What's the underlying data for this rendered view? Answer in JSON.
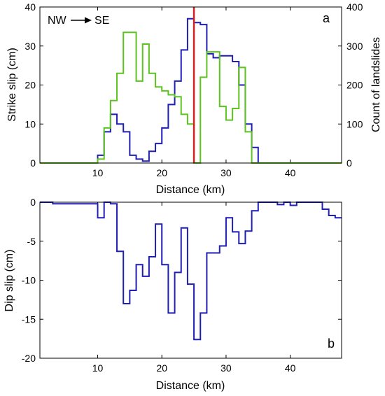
{
  "chart_data": [
    {
      "panel": "a",
      "type": "line",
      "step": true,
      "panel_label": "a",
      "annotation": "NW",
      "annotation_2": "SE",
      "xlabel": "Distance (km)",
      "ylabel": "Strike slip (cm)",
      "ylabel_right": "Count of landslides",
      "xlim": [
        1,
        48
      ],
      "ylim": [
        0,
        40
      ],
      "ylim_right": [
        0,
        400
      ],
      "xticks": [
        10,
        20,
        30,
        40
      ],
      "yticks": [
        0,
        10,
        20,
        30,
        40
      ],
      "yticks_right": [
        0,
        100,
        200,
        300,
        400
      ],
      "vline_x": 25,
      "vline_color": "#d42020",
      "series": [
        {
          "axis": "left",
          "color": "#1f1fb4",
          "x": [
            1,
            9,
            10,
            11,
            12,
            13,
            14,
            15,
            16,
            17,
            18,
            19,
            20,
            21,
            22,
            23,
            24,
            25,
            26,
            27,
            28,
            29,
            30,
            31,
            32,
            33,
            34,
            35,
            36,
            48
          ],
          "y": [
            0,
            0,
            2,
            8,
            12.5,
            10,
            8,
            2,
            1,
            0.5,
            3,
            5,
            9,
            15,
            21,
            29,
            37,
            36,
            35.5,
            28,
            27,
            27.5,
            27.5,
            26,
            20,
            10,
            4,
            0,
            0,
            0
          ]
        },
        {
          "axis": "right",
          "color": "#5cc41e",
          "x": [
            1,
            9,
            10,
            11,
            12,
            13,
            14,
            15,
            16,
            17,
            18,
            19,
            20,
            21,
            22,
            23,
            24,
            25,
            26,
            27,
            28,
            29,
            30,
            31,
            32,
            33,
            34,
            35,
            36,
            48
          ],
          "y": [
            0,
            0,
            10,
            90,
            160,
            230,
            335,
            335,
            210,
            305,
            230,
            195,
            185,
            175,
            170,
            125,
            100,
            0,
            220,
            285,
            285,
            145,
            110,
            140,
            245,
            80,
            0,
            0,
            0,
            0
          ]
        }
      ]
    },
    {
      "panel": "b",
      "type": "line",
      "step": true,
      "panel_label": "b",
      "xlabel": "Distance (km)",
      "ylabel": "Dip slip (cm)",
      "xlim": [
        1,
        48
      ],
      "ylim": [
        -20,
        0
      ],
      "xticks": [
        10,
        20,
        30,
        40
      ],
      "yticks": [
        0,
        -5,
        -10,
        -15,
        -20
      ],
      "series": [
        {
          "color": "#1f1fb4",
          "x": [
            1,
            2,
            3,
            10,
            11,
            12,
            13,
            14,
            15,
            16,
            17,
            18,
            19,
            20,
            21,
            22,
            23,
            24,
            25,
            26,
            27,
            28,
            29,
            30,
            31,
            32,
            33,
            34,
            35,
            36,
            37,
            38,
            39,
            40,
            41,
            42,
            43,
            44,
            45,
            46,
            47,
            48
          ],
          "y": [
            0,
            0,
            -0.2,
            -2,
            0,
            -0.2,
            -6.3,
            -13,
            -11.3,
            -8,
            -9.5,
            -7,
            -2.8,
            -8,
            -14.2,
            -9,
            -3.3,
            -10.5,
            -17.6,
            -14.2,
            -6.5,
            -6.5,
            -5.6,
            -2,
            -3.8,
            -5.3,
            -3.7,
            -1.1,
            0,
            0,
            0,
            -0.3,
            0,
            -0.4,
            0,
            0,
            0,
            0,
            -0.9,
            -1.7,
            -2,
            -2
          ]
        }
      ]
    }
  ]
}
